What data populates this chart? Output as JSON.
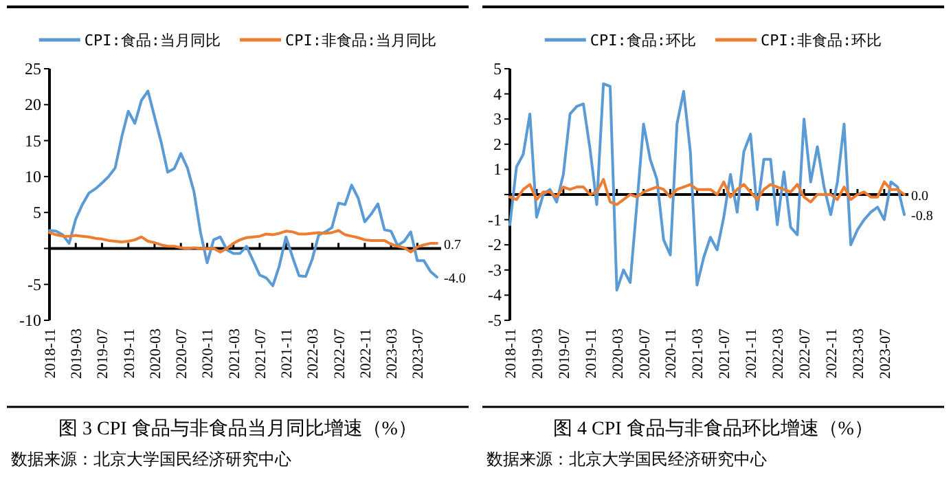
{
  "chart_data": [
    {
      "type": "line",
      "title": "图 3 CPI 食品与非食品当月同比增速（%）",
      "annotations": [
        "数据来源：北京大学国民经济研究中心"
      ],
      "categories": [
        "2018-11",
        null,
        null,
        null,
        "2019-03",
        null,
        null,
        null,
        "2019-07",
        null,
        null,
        null,
        "2019-11",
        null,
        null,
        null,
        "2020-03",
        null,
        null,
        null,
        "2020-07",
        null,
        null,
        null,
        "2020-11",
        null,
        null,
        null,
        "2021-03",
        null,
        null,
        null,
        "2021-07",
        null,
        null,
        null,
        "2021-11",
        null,
        null,
        null,
        "2022-03",
        null,
        null,
        null,
        "2022-07",
        null,
        null,
        null,
        "2022-11",
        null,
        null,
        null,
        "2023-03",
        null,
        null,
        null,
        "2023-07",
        null,
        null,
        null
      ],
      "series": [
        {
          "name": "CPI:食品:当月同比",
          "color": "#5b9bd5",
          "values": [
            2.5,
            2.4,
            1.9,
            0.7,
            4.1,
            6.1,
            7.7,
            8.3,
            9.1,
            10.0,
            11.2,
            15.5,
            19.1,
            17.4,
            20.6,
            21.9,
            18.3,
            14.8,
            10.6,
            11.1,
            13.2,
            11.2,
            7.9,
            2.2,
            -2.0,
            1.2,
            1.6,
            -0.2,
            -0.7,
            -0.7,
            0.3,
            -1.7,
            -3.7,
            -4.1,
            -5.2,
            -2.4,
            1.6,
            -1.2,
            -3.8,
            -3.9,
            -1.5,
            1.9,
            2.3,
            2.9,
            6.3,
            6.1,
            8.8,
            7.0,
            3.7,
            4.8,
            6.2,
            2.6,
            2.4,
            0.4,
            1.0,
            2.3,
            -1.7,
            -1.7,
            -3.2,
            -4.0
          ],
          "value_labels": [
            null,
            null,
            null,
            null,
            null,
            null,
            null,
            null,
            null,
            null,
            null,
            null,
            null,
            null,
            null,
            null,
            null,
            null,
            null,
            null,
            null,
            null,
            null,
            null,
            null,
            null,
            null,
            null,
            null,
            null,
            null,
            null,
            null,
            null,
            null,
            null,
            null,
            null,
            null,
            null,
            null,
            null,
            null,
            null,
            null,
            null,
            null,
            null,
            null,
            null,
            null,
            null,
            null,
            null,
            null,
            null,
            null,
            null,
            null,
            "-4.0"
          ]
        },
        {
          "name": "CPI:非食品:当月同比",
          "color": "#ed7d31",
          "values": [
            2.2,
            1.9,
            1.7,
            1.7,
            1.8,
            1.7,
            1.6,
            1.4,
            1.3,
            1.1,
            1.0,
            0.9,
            1.0,
            1.2,
            1.6,
            1.0,
            0.8,
            0.5,
            0.3,
            0.3,
            0.1,
            0.0,
            0.1,
            0.0,
            0.0,
            0.0,
            -0.5,
            0.0,
            0.7,
            1.2,
            1.5,
            1.6,
            1.7,
            2.0,
            1.9,
            2.1,
            2.4,
            2.3,
            2.0,
            2.0,
            2.1,
            2.2,
            2.1,
            2.2,
            2.5,
            1.9,
            1.7,
            1.5,
            1.2,
            1.1,
            1.1,
            1.1,
            0.6,
            0.3,
            0.1,
            -0.5,
            0.2,
            0.5,
            0.7,
            0.7
          ],
          "value_labels": [
            null,
            null,
            null,
            null,
            null,
            null,
            null,
            null,
            null,
            null,
            null,
            null,
            null,
            null,
            null,
            null,
            null,
            null,
            null,
            null,
            null,
            null,
            null,
            null,
            null,
            null,
            null,
            null,
            null,
            null,
            null,
            null,
            null,
            null,
            null,
            null,
            null,
            null,
            null,
            null,
            null,
            null,
            null,
            null,
            null,
            null,
            null,
            null,
            null,
            null,
            null,
            null,
            null,
            null,
            null,
            null,
            null,
            null,
            null,
            "0.7"
          ]
        }
      ],
      "ylim": [
        -10,
        25
      ],
      "yticks": [
        -10,
        -5,
        {
          "value": 0,
          "label": null
        },
        5,
        10,
        15,
        20,
        25
      ],
      "legend": "top"
    },
    {
      "type": "line",
      "title": "图 4 CPI 食品与非食品环比增速（%）",
      "annotations": [
        "数据来源：北京大学国民经济研究中心"
      ],
      "categories": [
        "2018-11",
        null,
        null,
        null,
        "2019-03",
        null,
        null,
        null,
        "2019-07",
        null,
        null,
        null,
        "2019-11",
        null,
        null,
        null,
        "2020-03",
        null,
        null,
        null,
        "2020-07",
        null,
        null,
        null,
        "2020-11",
        null,
        null,
        null,
        "2021-03",
        null,
        null,
        null,
        "2021-07",
        null,
        null,
        null,
        "2021-11",
        null,
        null,
        null,
        "2022-03",
        null,
        null,
        null,
        "2022-07",
        null,
        null,
        null,
        "2022-11",
        null,
        null,
        null,
        "2023-03",
        null,
        null,
        null,
        "2023-07",
        null,
        null,
        null
      ],
      "series": [
        {
          "name": "CPI:食品:环比",
          "color": "#5b9bd5",
          "values": [
            -1.2,
            1.1,
            1.6,
            3.2,
            -0.9,
            0.0,
            0.2,
            -0.3,
            0.8,
            3.2,
            3.5,
            3.6,
            1.8,
            -0.4,
            4.4,
            4.3,
            -3.8,
            -3.0,
            -3.5,
            -0.4,
            2.8,
            1.4,
            0.6,
            -1.8,
            -2.4,
            2.8,
            4.1,
            1.7,
            -3.6,
            -2.5,
            -1.7,
            -2.2,
            -0.9,
            0.8,
            -0.7,
            1.7,
            2.4,
            -0.6,
            1.4,
            1.4,
            -1.2,
            0.9,
            -1.3,
            -1.6,
            3.0,
            0.5,
            1.9,
            0.3,
            -0.8,
            0.5,
            2.8,
            -2.0,
            -1.4,
            -1.0,
            -0.7,
            -0.5,
            -1.0,
            0.5,
            0.3,
            -0.8
          ],
          "value_labels": [
            null,
            null,
            null,
            null,
            null,
            null,
            null,
            null,
            null,
            null,
            null,
            null,
            null,
            null,
            null,
            null,
            null,
            null,
            null,
            null,
            null,
            null,
            null,
            null,
            null,
            null,
            null,
            null,
            null,
            null,
            null,
            null,
            null,
            null,
            null,
            null,
            null,
            null,
            null,
            null,
            null,
            null,
            null,
            null,
            null,
            null,
            null,
            null,
            null,
            null,
            null,
            null,
            null,
            null,
            null,
            null,
            null,
            null,
            null,
            "-0.8"
          ]
        },
        {
          "name": "CPI:非食品:环比",
          "color": "#ed7d31",
          "values": [
            -0.1,
            -0.2,
            0.2,
            0.4,
            -0.2,
            0.1,
            0.1,
            -0.1,
            0.3,
            0.2,
            0.3,
            0.3,
            0.0,
            0.1,
            0.6,
            -0.3,
            -0.4,
            -0.2,
            0.0,
            -0.1,
            0.1,
            0.2,
            0.3,
            0.2,
            -0.1,
            0.2,
            0.3,
            0.4,
            0.2,
            0.2,
            0.2,
            0.0,
            0.5,
            -0.1,
            0.2,
            0.4,
            0.1,
            -0.2,
            0.2,
            0.4,
            0.3,
            0.2,
            0.1,
            0.4,
            -0.1,
            -0.3,
            0.0,
            0.0,
            0.0,
            -0.2,
            0.3,
            -0.2,
            0.0,
            0.1,
            -0.1,
            -0.1,
            0.5,
            0.2,
            0.2,
            0.0
          ],
          "value_labels": [
            null,
            null,
            null,
            null,
            null,
            null,
            null,
            null,
            null,
            null,
            null,
            null,
            null,
            null,
            null,
            null,
            null,
            null,
            null,
            null,
            null,
            null,
            null,
            null,
            null,
            null,
            null,
            null,
            null,
            null,
            null,
            null,
            null,
            null,
            null,
            null,
            null,
            null,
            null,
            null,
            null,
            null,
            null,
            null,
            null,
            null,
            null,
            null,
            null,
            null,
            null,
            null,
            null,
            null,
            null,
            null,
            null,
            null,
            null,
            "0.0"
          ]
        }
      ],
      "ylim": [
        -5,
        5
      ],
      "yticks": [
        -5,
        -4,
        -3,
        -2,
        -1,
        {
          "value": 0,
          "label": null
        },
        1,
        2,
        3,
        4,
        5
      ],
      "legend": "top"
    }
  ]
}
